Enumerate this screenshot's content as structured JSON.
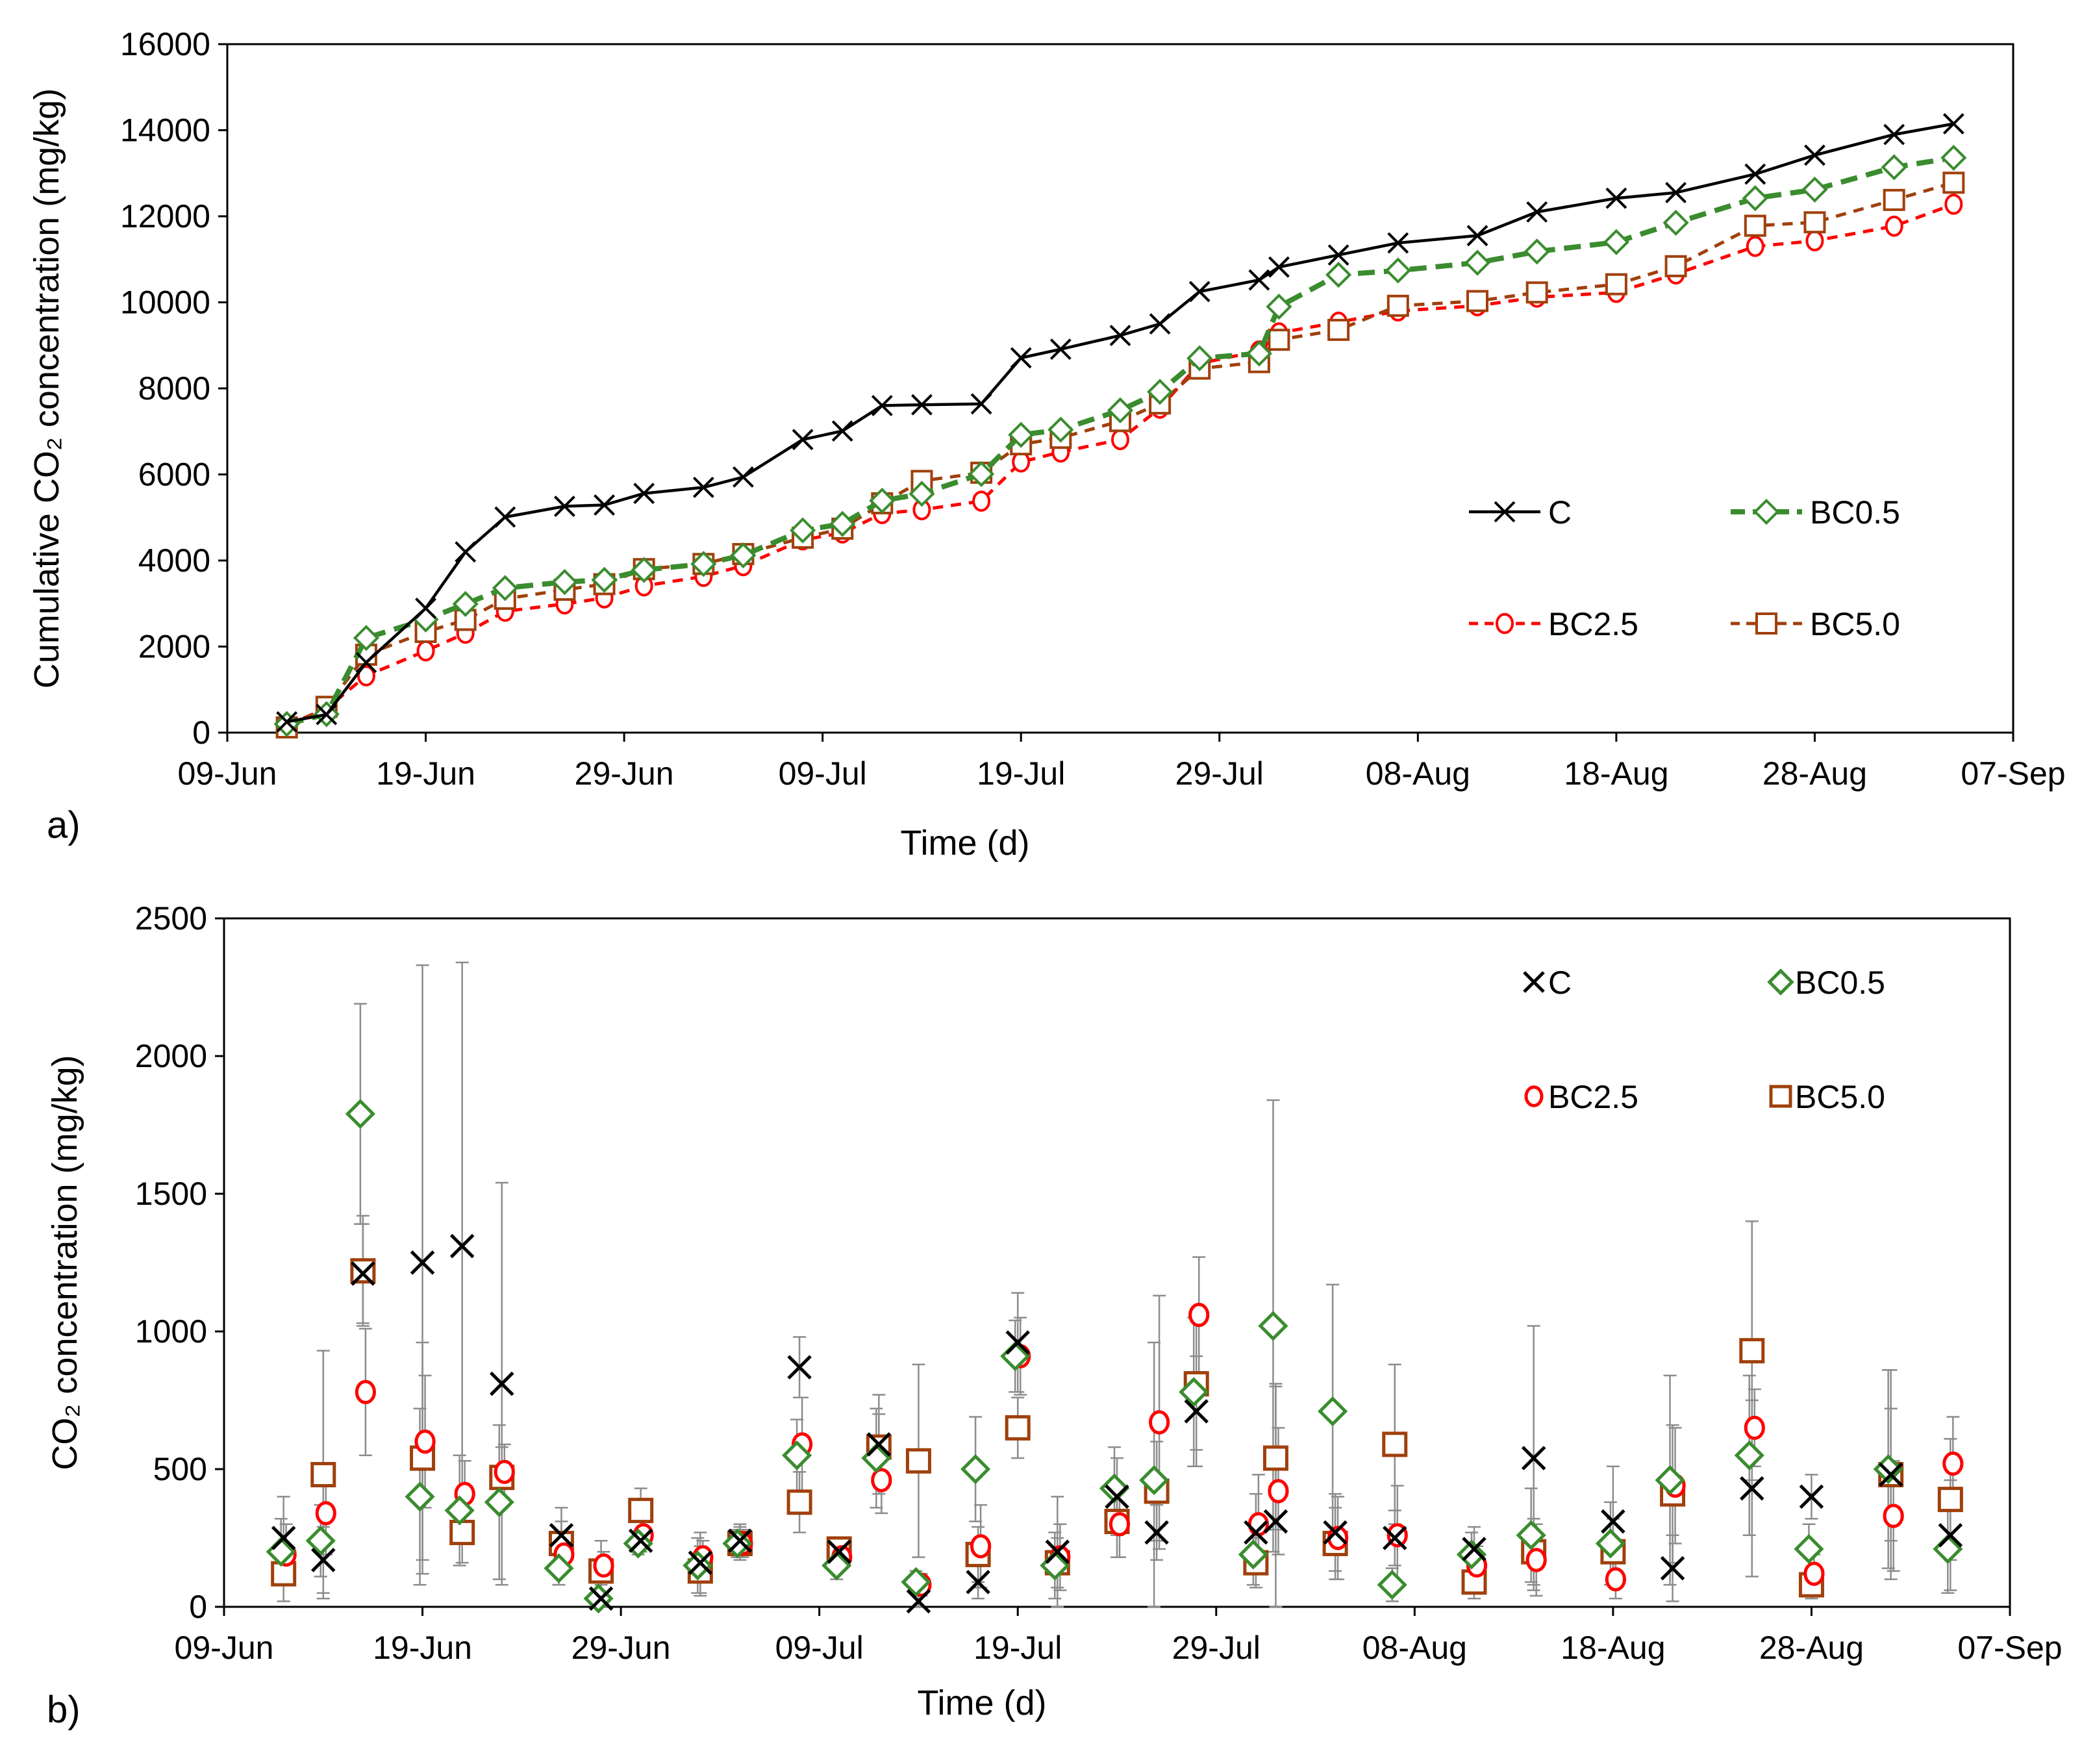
{
  "chart_data": [
    {
      "type": "line",
      "panel_label": "a)",
      "title": "",
      "xlabel": "Time (d)",
      "ylabel": "Cumulative CO₂ concentration (mg/kg)",
      "xlim": [
        0,
        90
      ],
      "ylim": [
        0,
        16000
      ],
      "yticks": [
        0,
        2000,
        4000,
        6000,
        8000,
        10000,
        12000,
        14000,
        16000
      ],
      "xticks": [
        {
          "value": 0,
          "label": "09-Jun"
        },
        {
          "value": 10,
          "label": "19-Jun"
        },
        {
          "value": 20,
          "label": "29-Jun"
        },
        {
          "value": 30,
          "label": "09-Jul"
        },
        {
          "value": 40,
          "label": "19-Jul"
        },
        {
          "value": 50,
          "label": "29-Jul"
        },
        {
          "value": 60,
          "label": "08-Aug"
        },
        {
          "value": 70,
          "label": "18-Aug"
        },
        {
          "value": 80,
          "label": "28-Aug"
        },
        {
          "value": 90,
          "label": "07-Sep"
        }
      ],
      "x": [
        3,
        5,
        7,
        10,
        12,
        14,
        17,
        19,
        21,
        24,
        26,
        29,
        31,
        33,
        35,
        38,
        40,
        42,
        45,
        47,
        49,
        52,
        53,
        56,
        59,
        63,
        66,
        70,
        73,
        77,
        80,
        84,
        87
      ],
      "series": [
        {
          "name": "C",
          "color": "#000000",
          "marker": "x",
          "dash": "none",
          "values": [
            250,
            420,
            1630,
            2890,
            4200,
            5010,
            5260,
            5290,
            5560,
            5700,
            5940,
            6810,
            7010,
            7600,
            7620,
            7640,
            8710,
            8910,
            9230,
            9500,
            10250,
            10520,
            10820,
            11100,
            11380,
            11550,
            12100,
            12420,
            12550,
            12980,
            13420,
            13900,
            14150
          ]
        },
        {
          "name": "BC0.5",
          "color": "#3a8c2e",
          "marker": "diamond",
          "dash": "long",
          "values": [
            200,
            430,
            2200,
            2630,
            2990,
            3360,
            3500,
            3550,
            3780,
            3920,
            4120,
            4700,
            4850,
            5390,
            5550,
            6010,
            6920,
            7040,
            7490,
            7920,
            8700,
            8810,
            9900,
            10640,
            10740,
            10920,
            11180,
            11400,
            11850,
            12420,
            12620,
            13140,
            13360
          ]
        },
        {
          "name": "BC2.5",
          "color": "#ff0000",
          "marker": "circle",
          "dash": "short",
          "values": [
            180,
            560,
            1320,
            1900,
            2310,
            2820,
            2990,
            3130,
            3410,
            3630,
            3880,
            4480,
            4640,
            5090,
            5180,
            5380,
            6290,
            6520,
            6810,
            7540,
            8580,
            8870,
            9290,
            9540,
            9800,
            9920,
            10120,
            10230,
            10660,
            11300,
            11430,
            11770,
            12280
          ]
        },
        {
          "name": "BC5.0",
          "color": "#a0400c",
          "marker": "square",
          "dash": "short",
          "values": [
            120,
            600,
            1810,
            2340,
            2620,
            3110,
            3320,
            3450,
            3800,
            3920,
            4150,
            4530,
            4740,
            5330,
            5850,
            6040,
            6700,
            6850,
            7240,
            7650,
            8460,
            8610,
            9130,
            9360,
            9920,
            10030,
            10230,
            10420,
            10840,
            11780,
            11860,
            12380,
            12780
          ]
        }
      ],
      "legend": "right, 2x2"
    },
    {
      "type": "scatter",
      "panel_label": "b)",
      "title": "",
      "xlabel": "Time (d)",
      "ylabel": "CO₂ concentration (mg/kg)",
      "xlim": [
        0,
        90
      ],
      "ylim": [
        0,
        2500
      ],
      "yticks": [
        0,
        500,
        1000,
        1500,
        2000,
        2500
      ],
      "xticks": [
        {
          "value": 0,
          "label": "09-Jun"
        },
        {
          "value": 10,
          "label": "19-Jun"
        },
        {
          "value": 20,
          "label": "29-Jun"
        },
        {
          "value": 30,
          "label": "09-Jul"
        },
        {
          "value": 40,
          "label": "19-Jul"
        },
        {
          "value": 50,
          "label": "29-Jul"
        },
        {
          "value": 60,
          "label": "08-Aug"
        },
        {
          "value": 70,
          "label": "18-Aug"
        },
        {
          "value": 80,
          "label": "28-Aug"
        },
        {
          "value": 90,
          "label": "07-Sep"
        }
      ],
      "x": [
        3,
        5,
        7,
        10,
        12,
        14,
        17,
        19,
        21,
        24,
        26,
        29,
        31,
        33,
        35,
        38,
        40,
        42,
        45,
        47,
        49,
        52,
        53,
        56,
        59,
        63,
        66,
        70,
        73,
        77,
        80,
        84,
        87
      ],
      "series": [
        {
          "name": "C",
          "color": "#000000",
          "marker": "x",
          "values": [
            250,
            170,
            1210,
            1250,
            1310,
            810,
            260,
            30,
            240,
            160,
            240,
            870,
            200,
            590,
            20,
            90,
            960,
            200,
            400,
            270,
            710,
            270,
            310,
            270,
            250,
            210,
            540,
            310,
            140,
            430,
            400,
            480,
            260
          ],
          "errors": [
            150,
            120,
            180,
            1080,
            1030,
            730,
            100,
            50,
            40,
            110,
            60,
            110,
            40,
            180,
            20,
            60,
            180,
            200,
            140,
            100,
            200,
            140,
            500,
            140,
            100,
            80,
            480,
            200,
            120,
            320,
            80,
            380,
            200
          ]
        },
        {
          "name": "BC0.5",
          "color": "#3a8c2e",
          "marker": "diamond",
          "values": [
            200,
            240,
            1790,
            400,
            350,
            380,
            140,
            30,
            230,
            150,
            230,
            550,
            150,
            540,
            90,
            500,
            910,
            150,
            430,
            460,
            780,
            190,
            1020,
            710,
            80,
            190,
            260,
            230,
            460,
            550,
            210,
            500,
            210
          ],
          "errors": [
            120,
            130,
            400,
            320,
            200,
            280,
            60,
            30,
            40,
            100,
            50,
            130,
            50,
            180,
            40,
            190,
            130,
            120,
            150,
            500,
            270,
            110,
            820,
            460,
            60,
            80,
            170,
            150,
            380,
            290,
            90,
            360,
            160
          ]
        },
        {
          "name": "BC2.5",
          "color": "#ff0000",
          "marker": "circle",
          "values": [
            190,
            340,
            780,
            600,
            410,
            490,
            190,
            150,
            260,
            180,
            230,
            590,
            180,
            460,
            80,
            220,
            910,
            180,
            300,
            670,
            1060,
            300,
            420,
            250,
            260,
            150,
            170,
            100,
            440,
            650,
            120,
            330,
            520
          ],
          "errors": [
            110,
            150,
            230,
            240,
            120,
            100,
            60,
            50,
            50,
            60,
            50,
            170,
            40,
            120,
            40,
            150,
            140,
            120,
            120,
            460,
            210,
            180,
            230,
            150,
            180,
            70,
            130,
            70,
            210,
            140,
            70,
            200,
            170
          ]
        },
        {
          "name": "BC5.0",
          "color": "#a0400c",
          "marker": "square",
          "values": [
            120,
            480,
            1220,
            540,
            270,
            470,
            230,
            130,
            350,
            130,
            230,
            380,
            210,
            580,
            530,
            190,
            650,
            160,
            310,
            420,
            810,
            160,
            540,
            230,
            590,
            90,
            200,
            200,
            410,
            930,
            80,
            480,
            390
          ],
          "errors": [
            100,
            450,
            200,
            420,
            110,
            110,
            80,
            110,
            80,
            90,
            60,
            110,
            40,
            120,
            350,
            100,
            110,
            90,
            130,
            180,
            240,
            90,
            260,
            130,
            290,
            60,
            120,
            120,
            250,
            470,
            50,
            240,
            220
          ]
        }
      ],
      "legend": "top-right, 2x2"
    }
  ]
}
